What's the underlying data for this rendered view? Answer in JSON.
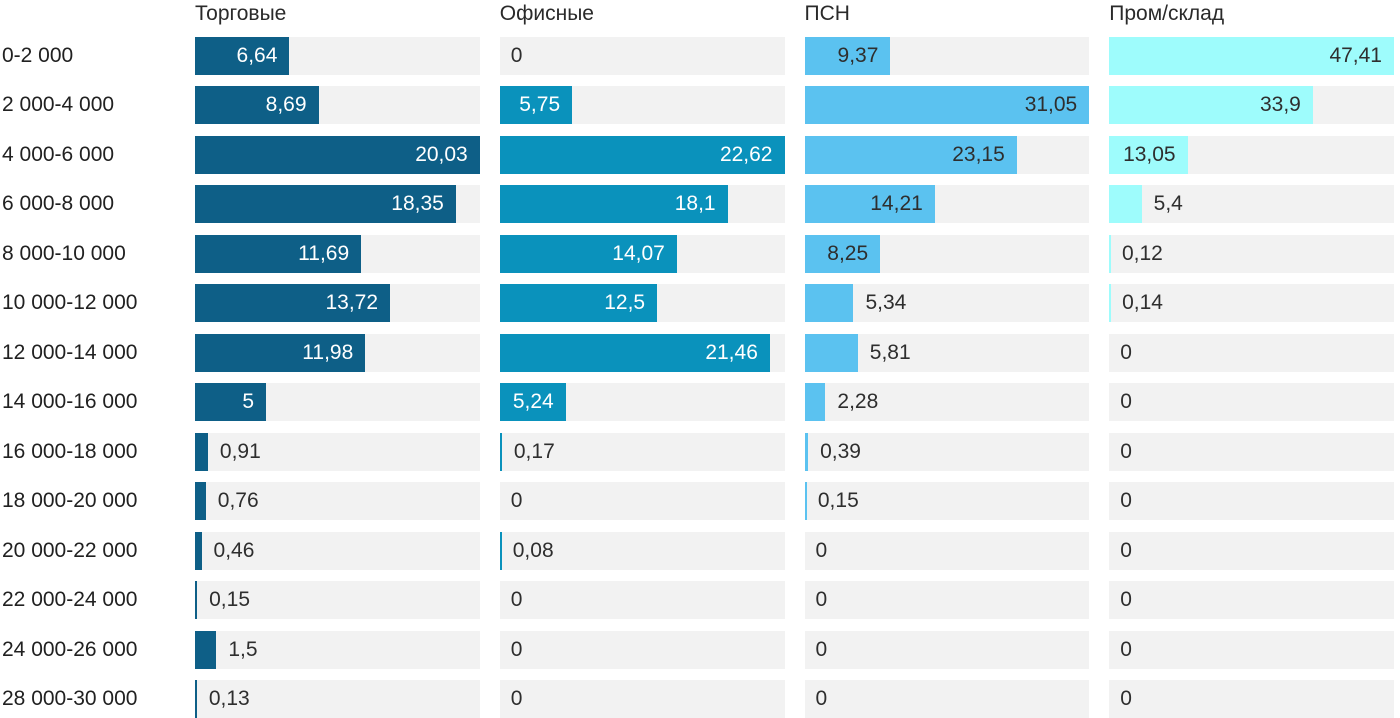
{
  "chart_data": {
    "type": "bar",
    "orientation": "horizontal",
    "title": "",
    "scaling": "each column scaled independently to its own maximum value",
    "grid": false,
    "legend_position": "top-as-column-headers",
    "track_color": "#f2f2f2",
    "outside_text_color": "#2e2e2e",
    "header_text_color": "#2a2a2a",
    "row_label_color": "#212121",
    "categories": [
      "0-2 000",
      "2 000-4 000",
      "4 000-6 000",
      "6 000-8 000",
      "8 000-10 000",
      "10 000-12 000",
      "12 000-14 000",
      "14 000-16 000",
      "16 000-18 000",
      "18 000-20 000",
      "20 000-22 000",
      "22 000-24 000",
      "24 000-26 000",
      "28 000-30 000"
    ],
    "series": [
      {
        "name": "Торговые",
        "color": "#0e5f87",
        "inside_text_color": "#ffffff",
        "max": 20.03,
        "values": [
          6.64,
          8.69,
          20.03,
          18.35,
          11.69,
          13.72,
          11.98,
          5,
          0.91,
          0.76,
          0.46,
          0.15,
          1.5,
          0.13
        ],
        "display": [
          "6,64",
          "8,69",
          "20,03",
          "18,35",
          "11,69",
          "13,72",
          "11,98",
          "5",
          "0,91",
          "0,76",
          "0,46",
          "0,15",
          "1,5",
          "0,13"
        ]
      },
      {
        "name": "Офисные",
        "color": "#0a92bc",
        "inside_text_color": "#ffffff",
        "max": 22.62,
        "values": [
          0,
          5.75,
          22.62,
          18.1,
          14.07,
          12.5,
          21.46,
          5.24,
          0.17,
          0,
          0.08,
          0,
          0,
          0
        ],
        "display": [
          "0",
          "5,75",
          "22,62",
          "18,1",
          "14,07",
          "12,5",
          "21,46",
          "5,24",
          "0,17",
          "0",
          "0,08",
          "0",
          "0",
          "0"
        ]
      },
      {
        "name": "ПСН",
        "color": "#5bc2f0",
        "inside_text_color": "#2e2e2e",
        "max": 31.05,
        "values": [
          9.37,
          31.05,
          23.15,
          14.21,
          8.25,
          5.34,
          5.81,
          2.28,
          0.39,
          0.15,
          0,
          0,
          0,
          0
        ],
        "display": [
          "9,37",
          "31,05",
          "23,15",
          "14,21",
          "8,25",
          "5,34",
          "5,81",
          "2,28",
          "0,39",
          "0,15",
          "0",
          "0",
          "0",
          "0"
        ]
      },
      {
        "name": "Пром/склад",
        "color": "#9efcfc",
        "inside_text_color": "#2e2e2e",
        "max": 47.41,
        "values": [
          47.41,
          33.9,
          13.05,
          5.4,
          0.12,
          0.14,
          0,
          0,
          0,
          0,
          0,
          0,
          0,
          0
        ],
        "display": [
          "47,41",
          "33,9",
          "13,05",
          "5,4",
          "0,12",
          "0,14",
          "0",
          "0",
          "0",
          "0",
          "0",
          "0",
          "0",
          "0"
        ]
      }
    ]
  }
}
